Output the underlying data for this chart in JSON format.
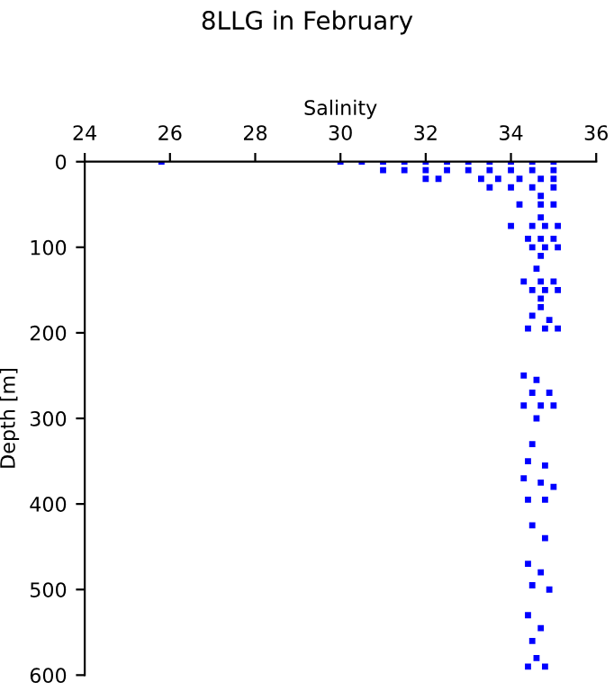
{
  "chart_data": {
    "type": "scatter",
    "title": "8LLG in February",
    "xlabel": "Salinity",
    "ylabel": "Depth [m]",
    "x": [
      25.8,
      30.0,
      30.5,
      31.0,
      31.5,
      32.0,
      32.5,
      33.0,
      33.5,
      34.0,
      34.5,
      35.0,
      31.0,
      31.5,
      32.0,
      32.5,
      33.0,
      33.5,
      34.0,
      34.5,
      35.0,
      32.0,
      32.3,
      33.3,
      33.7,
      34.2,
      34.7,
      35.0,
      33.5,
      34.0,
      34.5,
      35.0,
      34.7,
      34.2,
      34.7,
      35.0,
      34.7,
      34.0,
      34.5,
      34.8,
      35.1,
      34.4,
      34.7,
      35.0,
      34.5,
      34.8,
      35.1,
      34.7,
      34.6,
      34.3,
      34.7,
      35.0,
      34.5,
      34.8,
      35.1,
      34.7,
      34.7,
      34.5,
      34.9,
      34.4,
      34.8,
      35.1,
      34.3,
      34.6,
      34.5,
      34.9,
      34.3,
      34.7,
      35.0,
      34.6,
      34.5,
      34.4,
      34.8,
      34.3,
      34.7,
      35.0,
      34.4,
      34.8,
      34.5,
      34.8,
      34.4,
      34.7,
      34.5,
      34.9,
      34.4,
      34.7,
      34.5,
      34.6,
      34.8,
      34.4
    ],
    "values": [
      0,
      0,
      0,
      0,
      0,
      0,
      0,
      0,
      0,
      0,
      0,
      0,
      10,
      10,
      10,
      10,
      10,
      10,
      10,
      10,
      10,
      20,
      20,
      20,
      20,
      20,
      20,
      20,
      30,
      30,
      30,
      30,
      40,
      50,
      50,
      50,
      65,
      75,
      75,
      75,
      75,
      90,
      90,
      90,
      100,
      100,
      100,
      110,
      125,
      140,
      140,
      140,
      150,
      150,
      150,
      160,
      170,
      180,
      185,
      195,
      195,
      195,
      250,
      255,
      270,
      270,
      285,
      285,
      285,
      300,
      330,
      350,
      355,
      370,
      375,
      380,
      395,
      395,
      425,
      440,
      470,
      480,
      495,
      500,
      530,
      545,
      560,
      580,
      590,
      590
    ],
    "color": "#0000ff",
    "marker": "square",
    "xlim": [
      24,
      36
    ],
    "xticks": [
      24,
      26,
      28,
      30,
      32,
      34,
      36
    ],
    "ylim": [
      600,
      0
    ],
    "yticks": [
      0,
      100,
      200,
      300,
      400,
      500,
      600
    ],
    "grid": false
  }
}
